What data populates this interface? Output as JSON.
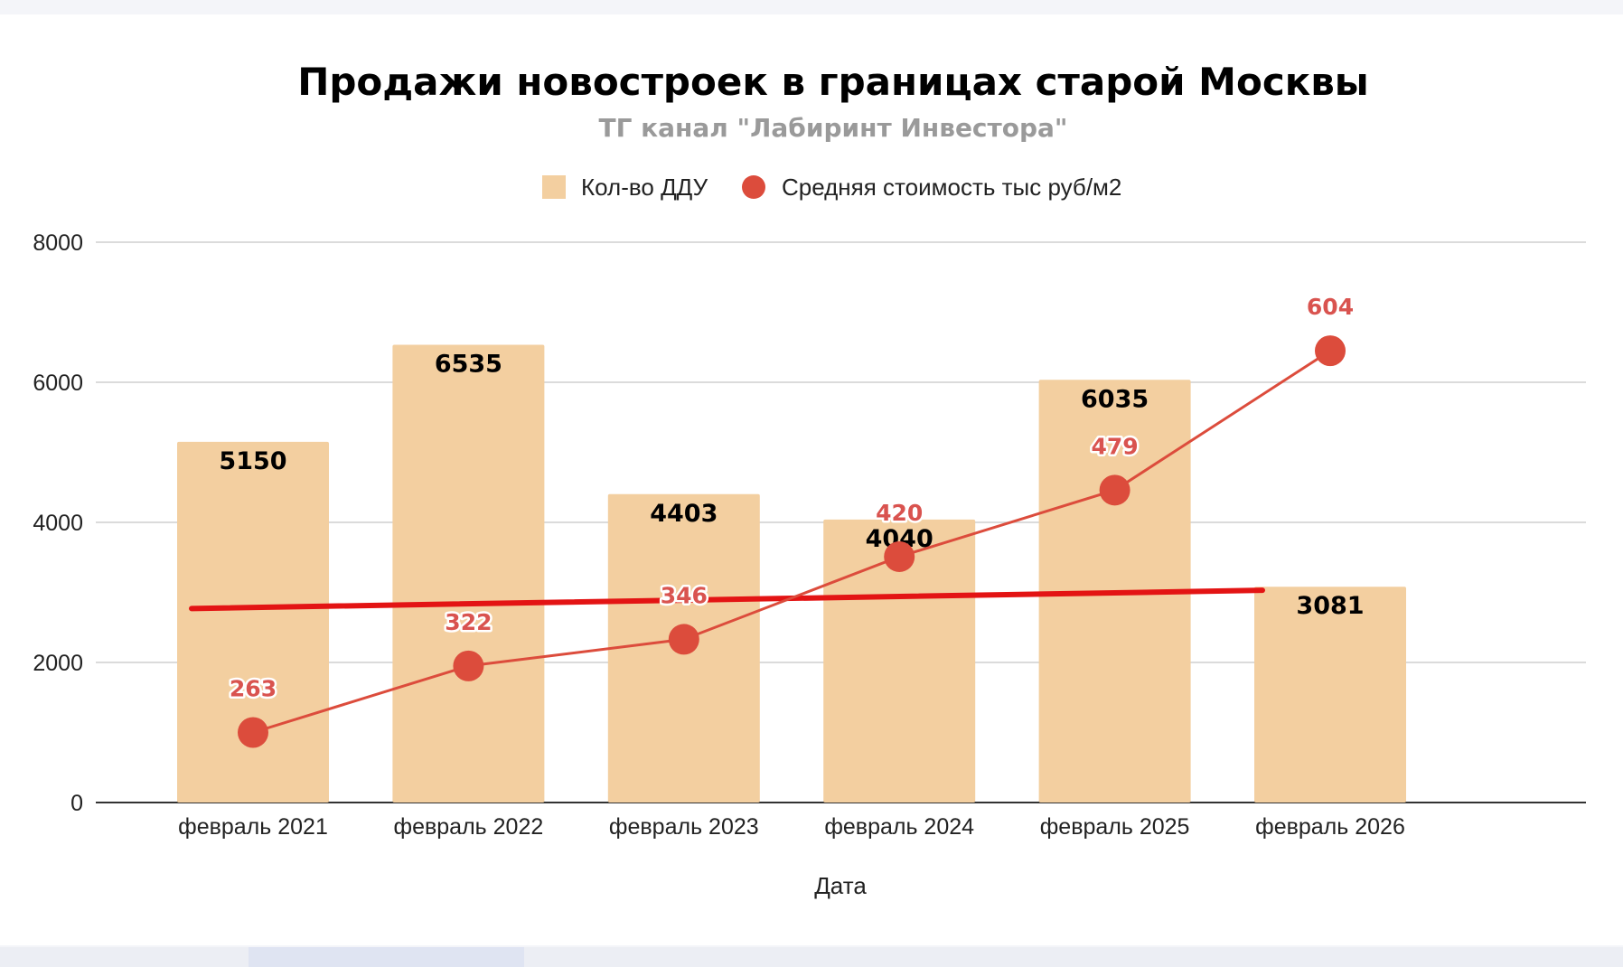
{
  "chart_data": {
    "type": "bar",
    "title": "Продажи новостроек в границах старой Москвы",
    "subtitle": "ТГ канал \"Лабиринт Инвестора\"",
    "xlabel": "Дата",
    "ylabel": "",
    "ylim": [
      0,
      8000
    ],
    "yticks": [
      "0",
      "2000",
      "4000",
      "6000",
      "8000"
    ],
    "grid": true,
    "legend_position": "top-center",
    "categories": [
      "февраль 2021",
      "февраль 2022",
      "февраль 2023",
      "февраль 2024",
      "февраль 2025",
      "февраль 2026"
    ],
    "series": [
      {
        "name": "Кол-во ДДУ",
        "kind": "bar",
        "color": "#f3cfa0",
        "values": [
          5150,
          6535,
          4403,
          4040,
          6035,
          3081
        ],
        "labels": [
          "5150",
          "6535",
          "4403",
          "4040",
          "6035",
          "3081"
        ]
      },
      {
        "name": "Средняя стоимость тыс руб/м2",
        "kind": "line-markers",
        "color": "#dc4c3c",
        "values": [
          263,
          322,
          346,
          420,
          479,
          604
        ],
        "labels": [
          "263",
          "322",
          "346",
          "420",
          "479",
          "604"
        ],
        "plotted_y": [
          1000,
          1950,
          2330,
          3510,
          4460,
          6450
        ]
      }
    ],
    "trendline": {
      "color": "#e31414",
      "categories": [
        "февраль 2021",
        "февраль 2026"
      ],
      "values": [
        2770,
        3030
      ]
    }
  }
}
